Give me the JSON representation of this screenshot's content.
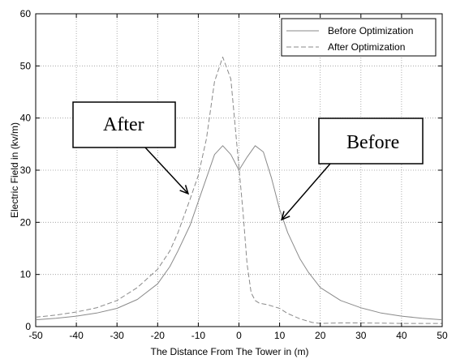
{
  "chart_data": {
    "type": "line",
    "xlabel": "The Distance From The Tower in (m)",
    "ylabel": "Electric Field in (kv/m)",
    "xlim": [
      -50,
      50
    ],
    "ylim": [
      0,
      60
    ],
    "xticks": [
      -50,
      -40,
      -30,
      -20,
      -10,
      0,
      10,
      20,
      30,
      40,
      50
    ],
    "yticks": [
      0,
      10,
      20,
      30,
      40,
      50,
      60
    ],
    "grid": true,
    "legend_position": "top-right",
    "series": [
      {
        "name": "Before Optimization",
        "style": "solid",
        "color": "#8a8a8a",
        "x": [
          -50,
          -45,
          -40,
          -35,
          -30,
          -25,
          -20,
          -17,
          -15,
          -12,
          -10,
          -8,
          -6,
          -4,
          -2,
          0,
          2,
          4,
          6,
          8,
          10,
          12,
          15,
          17,
          20,
          25,
          30,
          35,
          40,
          45,
          50
        ],
        "y": [
          1.3,
          1.6,
          2.0,
          2.6,
          3.5,
          5.2,
          8.2,
          11.5,
          14.5,
          19.5,
          24.0,
          28.5,
          33.0,
          34.7,
          33.0,
          30.0,
          32.5,
          34.7,
          33.5,
          28.5,
          22.5,
          18.0,
          13.0,
          10.5,
          7.5,
          5.0,
          3.6,
          2.6,
          2.0,
          1.6,
          1.3
        ]
      },
      {
        "name": "After Optimization",
        "style": "dashed",
        "color": "#8a8a8a",
        "x": [
          -50,
          -45,
          -40,
          -35,
          -30,
          -25,
          -20,
          -17,
          -15,
          -12,
          -10,
          -8,
          -6,
          -4,
          -2,
          0,
          1,
          2,
          3,
          4,
          5,
          7,
          10,
          12,
          15,
          18,
          20,
          25,
          30,
          40,
          50
        ],
        "y": [
          1.8,
          2.2,
          2.8,
          3.6,
          5.0,
          7.5,
          11.0,
          14.5,
          18.0,
          24.5,
          29.0,
          36.0,
          47.0,
          51.7,
          47.5,
          30.5,
          22.0,
          12.0,
          6.5,
          5.0,
          4.5,
          4.2,
          3.5,
          2.5,
          1.5,
          0.8,
          0.6,
          0.7,
          0.7,
          0.6,
          0.6
        ]
      }
    ],
    "annotations": [
      {
        "text": "After",
        "target": [
          -12.5,
          25.5
        ]
      },
      {
        "text": "Before",
        "target": [
          10.5,
          20.5
        ]
      }
    ]
  }
}
